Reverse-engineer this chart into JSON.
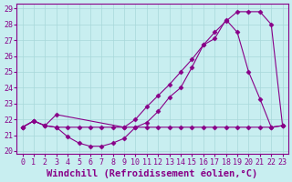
{
  "xlabel": "Windchill (Refroidissement éolien,°C)",
  "bg_color": "#c8eef0",
  "line_color": "#880088",
  "xlim": [
    -0.5,
    23.5
  ],
  "ylim": [
    19.8,
    29.3
  ],
  "yticks": [
    20,
    21,
    22,
    23,
    24,
    25,
    26,
    27,
    28,
    29
  ],
  "xticks": [
    0,
    1,
    2,
    3,
    4,
    5,
    6,
    7,
    8,
    9,
    10,
    11,
    12,
    13,
    14,
    15,
    16,
    17,
    18,
    19,
    20,
    21,
    22,
    23
  ],
  "series1_x": [
    0,
    1,
    2,
    3,
    4,
    5,
    6,
    7,
    8,
    9,
    10,
    11,
    12,
    13,
    14,
    15,
    16,
    17,
    18,
    19,
    20,
    21,
    22,
    23
  ],
  "series1_y": [
    21.5,
    21.9,
    21.6,
    21.5,
    21.5,
    21.5,
    21.5,
    21.5,
    21.5,
    21.5,
    21.5,
    21.5,
    21.5,
    21.5,
    21.5,
    21.5,
    21.5,
    21.5,
    21.5,
    21.5,
    21.5,
    21.5,
    21.5,
    21.6
  ],
  "series2_x": [
    0,
    1,
    2,
    3,
    9,
    10,
    11,
    12,
    13,
    14,
    15,
    16,
    17,
    18,
    19,
    20,
    21,
    22,
    23
  ],
  "series2_y": [
    21.5,
    21.9,
    21.6,
    22.3,
    21.5,
    22.0,
    22.8,
    23.5,
    24.2,
    25.0,
    25.8,
    26.7,
    27.5,
    28.2,
    28.8,
    28.8,
    28.8,
    28.0,
    21.6
  ],
  "series3_x": [
    0,
    1,
    2,
    3,
    4,
    5,
    6,
    7,
    8,
    9,
    10,
    11,
    12,
    13,
    14,
    15,
    16,
    17,
    18,
    19,
    20,
    21,
    22,
    23
  ],
  "series3_y": [
    21.5,
    21.9,
    21.6,
    21.5,
    20.9,
    20.5,
    20.3,
    20.3,
    20.5,
    20.8,
    21.5,
    21.8,
    22.5,
    23.4,
    24.0,
    25.3,
    26.7,
    27.1,
    28.3,
    27.5,
    25.0,
    23.3,
    21.5,
    21.6
  ],
  "grid_color": "#a8d8da",
  "tick_fontsize": 6,
  "xlabel_fontsize": 7.5
}
